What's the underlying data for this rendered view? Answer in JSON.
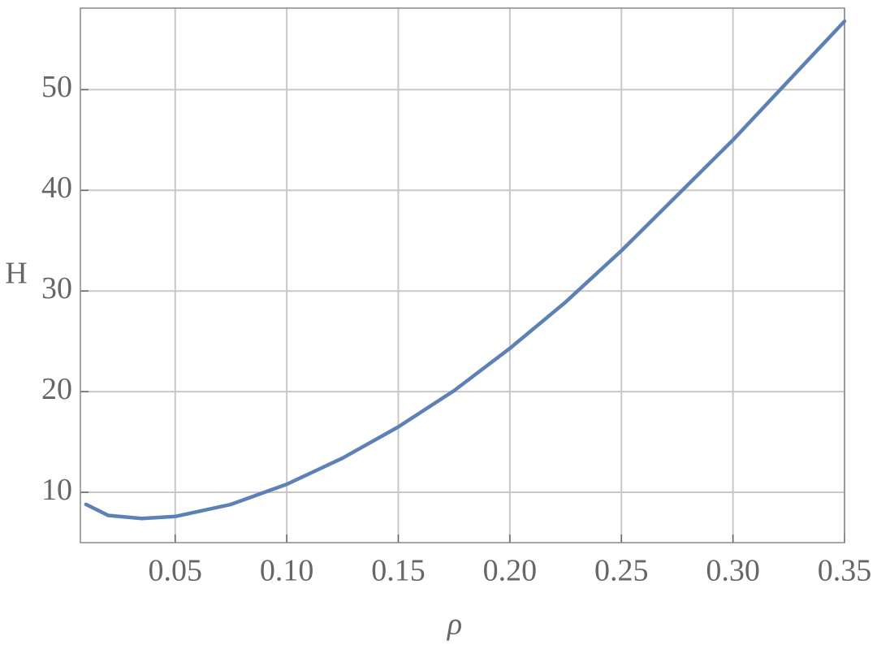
{
  "chart_data": {
    "type": "line",
    "x_label": "ρ",
    "y_label": "H",
    "x": [
      0.01,
      0.02,
      0.035,
      0.05,
      0.075,
      0.1,
      0.125,
      0.15,
      0.175,
      0.2,
      0.225,
      0.25,
      0.275,
      0.3,
      0.325,
      0.35
    ],
    "series": [
      {
        "color": "#5e81b5",
        "values": [
          8.8,
          7.7,
          7.4,
          7.6,
          8.8,
          10.8,
          13.4,
          16.5,
          20.1,
          24.3,
          28.9,
          34.0,
          39.5,
          45.0,
          50.9,
          56.8
        ]
      }
    ],
    "xlim": [
      0.0075,
      0.35
    ],
    "ylim": [
      5,
      58.1
    ],
    "xticks": [
      {
        "value": 0.05,
        "label": "0.05"
      },
      {
        "value": 0.1,
        "label": "0.10"
      },
      {
        "value": 0.15,
        "label": "0.15"
      },
      {
        "value": 0.2,
        "label": "0.20"
      },
      {
        "value": 0.25,
        "label": "0.25"
      },
      {
        "value": 0.3,
        "label": "0.30"
      },
      {
        "value": 0.35,
        "label": "0.35"
      }
    ],
    "yticks": [
      10,
      20,
      30,
      40,
      50
    ],
    "grid": true
  }
}
